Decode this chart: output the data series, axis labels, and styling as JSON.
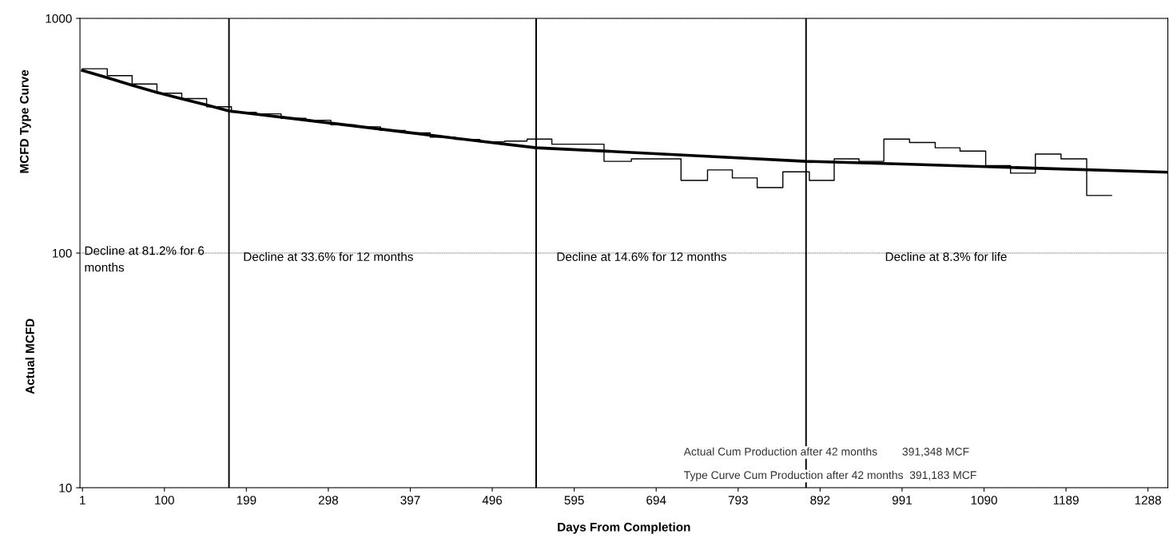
{
  "chart_data": {
    "type": "line",
    "xlabel": "Days From Completion",
    "ylabel": "MCFD Type Curve",
    "log": "y",
    "xlim": [
      -2,
      1312
    ],
    "ylim": [
      10,
      1000
    ],
    "xticks": [
      1,
      100,
      199,
      298,
      397,
      496,
      595,
      694,
      793,
      892,
      991,
      1090,
      1189,
      1288
    ],
    "yticks": [
      10,
      100,
      1000
    ],
    "grid": "y",
    "legend": false,
    "marker": "none",
    "line_style": "solid",
    "series": [
      {
        "type": "step",
        "color": "#000000",
        "x": [
          1,
          31,
          61,
          91,
          121,
          151,
          181,
          211,
          241,
          271,
          301,
          331,
          361,
          391,
          421,
          451,
          481,
          511,
          538,
          568,
          599,
          631,
          664,
          694,
          724,
          756,
          786,
          816,
          847,
          879,
          909,
          939,
          969,
          1000,
          1031,
          1061,
          1092,
          1122,
          1152,
          1183,
          1214,
          1244
        ],
        "values": [
          610,
          570,
          525,
          480,
          455,
          420,
          398,
          392,
          375,
          368,
          352,
          345,
          333,
          325,
          312,
          305,
          298,
          300,
          306,
          291,
          291,
          246,
          252,
          252,
          204,
          226,
          209,
          190,
          222,
          204,
          252,
          246,
          306,
          296,
          281,
          272,
          236,
          219,
          264,
          252,
          176,
          176
        ]
      },
      {
        "color": "#000000",
        "x": [
          1,
          30,
          60,
          90,
          120,
          150,
          178,
          250,
          350,
          450,
          549,
          650,
          750,
          875,
          1000,
          1150,
          1312
        ],
        "values": [
          600,
          560,
          520,
          485,
          455,
          428,
          403,
          376,
          341,
          309,
          281,
          270,
          259,
          246,
          239,
          230,
          221
        ]
      }
    ],
    "ref_lines": [
      {
        "axis": "x",
        "value": 178,
        "color": "#000000"
      },
      {
        "axis": "x",
        "value": 549,
        "color": "#000000"
      },
      {
        "axis": "x",
        "value": 875,
        "color": "#000000"
      }
    ],
    "annotations": [
      "Actual MCFD",
      "Decline at 81.2% for 6\nmonths",
      "Decline at 33.6% for 12 months",
      "Decline at 14.6% for 12 months",
      "Decline at 8.3% for life",
      "Actual Cum Production after 42 months        391,348 MCF",
      "Type Curve Cum Production after 42 months  391,183 MCF"
    ]
  }
}
